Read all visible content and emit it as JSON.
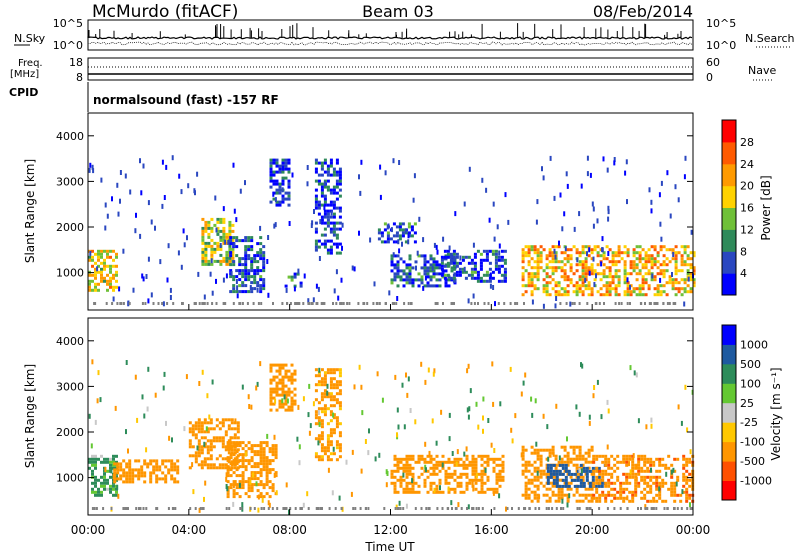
{
  "header": {
    "station": "McMurdo (fitACF)",
    "beam": "Beam 03",
    "date": "08/Feb/2014"
  },
  "top_panels": {
    "nsky_label": "N.Sky",
    "nsearch_label": "N.Search",
    "noise_left_ticks": [
      "10^5",
      "10^0"
    ],
    "noise_right_ticks": [
      "10^5",
      "10^0"
    ],
    "freq_label": "Freq.",
    "freq_unit": "[MHz]",
    "freq_ticks": [
      "18",
      "8"
    ],
    "nave_label": "Nave",
    "nave_ticks": [
      "60",
      "0"
    ],
    "cpid_label": "CPID",
    "cpid_value": "normalsound (fast) -157 RF"
  },
  "colors": {
    "power_scale": [
      "#0000ff",
      "#2a47c0",
      "#2f8a5a",
      "#6fc038",
      "#ffd200",
      "#ff9a00",
      "#ff5a00",
      "#ff0000"
    ],
    "velocity_scale": [
      "#ff0000",
      "#ff5000",
      "#ff9600",
      "#ffc800",
      "#c8c8c8",
      "#64c832",
      "#2d8c5a",
      "#1e5aa0",
      "#0000ff"
    ],
    "ground_scatter": "#808080"
  },
  "chart_data": [
    {
      "type": "heatmap",
      "title": "Power",
      "xlabel": "Time UT",
      "ylabel": "Slant Range [km]",
      "x_ticks": [
        "00:00",
        "04:00",
        "08:00",
        "12:00",
        "16:00",
        "20:00",
        "00:00"
      ],
      "y_ticks": [
        "1000",
        "2000",
        "3000",
        "4000"
      ],
      "ylim": [
        180,
        4500
      ],
      "xlim_hours": [
        0,
        24
      ],
      "colorbar": {
        "label": "Power [dB]",
        "ticks": [
          "4",
          "8",
          "12",
          "16",
          "20",
          "24",
          "28"
        ],
        "range": [
          0,
          30
        ]
      },
      "regions": [
        {
          "t0": 0.0,
          "t1": 1.1,
          "r0": 600,
          "r1": 1500,
          "v": 18
        },
        {
          "t0": 4.5,
          "t1": 5.8,
          "r0": 1200,
          "r1": 2200,
          "v": 16
        },
        {
          "t0": 5.6,
          "t1": 7.0,
          "r0": 600,
          "r1": 1800,
          "v": 6
        },
        {
          "t0": 7.2,
          "t1": 8.0,
          "r0": 2500,
          "r1": 3500,
          "v": 5
        },
        {
          "t0": 7.8,
          "t1": 8.4,
          "r0": 700,
          "r1": 1000,
          "v": 8
        },
        {
          "t0": 9.0,
          "t1": 10.0,
          "r0": 1400,
          "r1": 3500,
          "v": 5
        },
        {
          "t0": 11.5,
          "t1": 13.0,
          "r0": 1700,
          "r1": 2100,
          "v": 7
        },
        {
          "t0": 12.0,
          "t1": 14.5,
          "r0": 700,
          "r1": 1400,
          "v": 6
        },
        {
          "t0": 14.0,
          "t1": 16.5,
          "r0": 800,
          "r1": 1500,
          "v": 6
        },
        {
          "t0": 17.2,
          "t1": 24.0,
          "r0": 500,
          "r1": 1600,
          "v": 20
        }
      ]
    },
    {
      "type": "heatmap",
      "title": "Velocity",
      "xlabel": "Time UT",
      "ylabel": "Slant Range [km]",
      "x_ticks": [
        "00:00",
        "04:00",
        "08:00",
        "12:00",
        "16:00",
        "20:00",
        "00:00"
      ],
      "y_ticks": [
        "1000",
        "2000",
        "3000",
        "4000"
      ],
      "ylim": [
        180,
        4500
      ],
      "xlim_hours": [
        0,
        24
      ],
      "colorbar": {
        "label": "Velocity [m s⁻¹]",
        "ticks": [
          "1000",
          "500",
          "100",
          "25",
          "-25",
          "-100",
          "-500",
          "-1000"
        ],
        "range": [
          -1200,
          1200
        ]
      },
      "regions": [
        {
          "t0": 0.0,
          "t1": 1.1,
          "r0": 600,
          "r1": 1500,
          "v": 150
        },
        {
          "t0": 1.0,
          "t1": 3.5,
          "r0": 900,
          "r1": 1400,
          "v": -300
        },
        {
          "t0": 4.0,
          "t1": 6.0,
          "r0": 1200,
          "r1": 2300,
          "v": -350
        },
        {
          "t0": 5.5,
          "t1": 7.5,
          "r0": 600,
          "r1": 1800,
          "v": -250
        },
        {
          "t0": 7.2,
          "t1": 8.2,
          "r0": 2500,
          "r1": 3500,
          "v": -250
        },
        {
          "t0": 9.0,
          "t1": 10.0,
          "r0": 1400,
          "r1": 3400,
          "v": -200
        },
        {
          "t0": 12.0,
          "t1": 16.5,
          "r0": 700,
          "r1": 1500,
          "v": -300
        },
        {
          "t0": 17.2,
          "t1": 20.0,
          "r0": 500,
          "r1": 1700,
          "v": -350
        },
        {
          "t0": 18.2,
          "t1": 20.5,
          "r0": 800,
          "r1": 1300,
          "v": 700
        },
        {
          "t0": 20.0,
          "t1": 24.0,
          "r0": 500,
          "r1": 1500,
          "v": -400
        }
      ]
    }
  ]
}
